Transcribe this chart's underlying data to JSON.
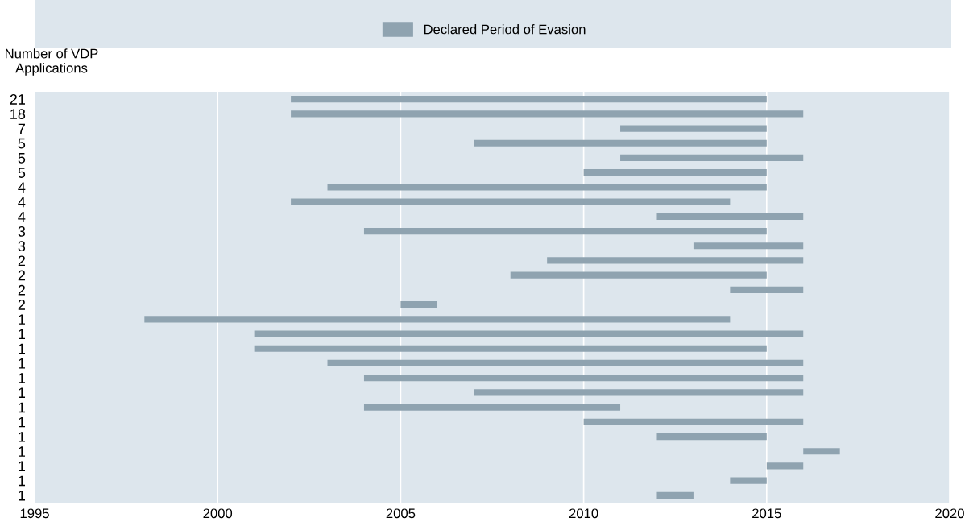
{
  "chart_data": {
    "type": "bar",
    "orientation": "horizontal",
    "ylabel": "Number of VDP\nApplications",
    "categories": [
      "21",
      "18",
      "7",
      "5",
      "5",
      "5",
      "4",
      "4",
      "4",
      "3",
      "3",
      "2",
      "2",
      "2",
      "2",
      "1",
      "1",
      "1",
      "1",
      "1",
      "1",
      "1",
      "1",
      "1",
      "1",
      "1",
      "1",
      "1"
    ],
    "series": [
      {
        "name": "Declared Period of Evasion",
        "color": "#8fa3b0",
        "base": [
          2002,
          2002,
          2011,
          2007,
          2011,
          2010,
          2003,
          2002,
          2012,
          2004,
          2013,
          2009,
          2008,
          2014,
          2005,
          1998,
          2001,
          2001,
          2003,
          2004,
          2007,
          2004,
          2010,
          2012,
          2016,
          2015,
          2014,
          2012
        ],
        "values": [
          13,
          14,
          4,
          8,
          5,
          5,
          12,
          12,
          4,
          11,
          3,
          7,
          7,
          2,
          1,
          16,
          15,
          14,
          13,
          12,
          9,
          7,
          6,
          3,
          1,
          1,
          1,
          1
        ]
      }
    ],
    "xlim": [
      1995,
      2020
    ],
    "xticks": [
      1995,
      2000,
      2005,
      2010,
      2015,
      2020
    ],
    "grid": "x",
    "legend": "top"
  }
}
